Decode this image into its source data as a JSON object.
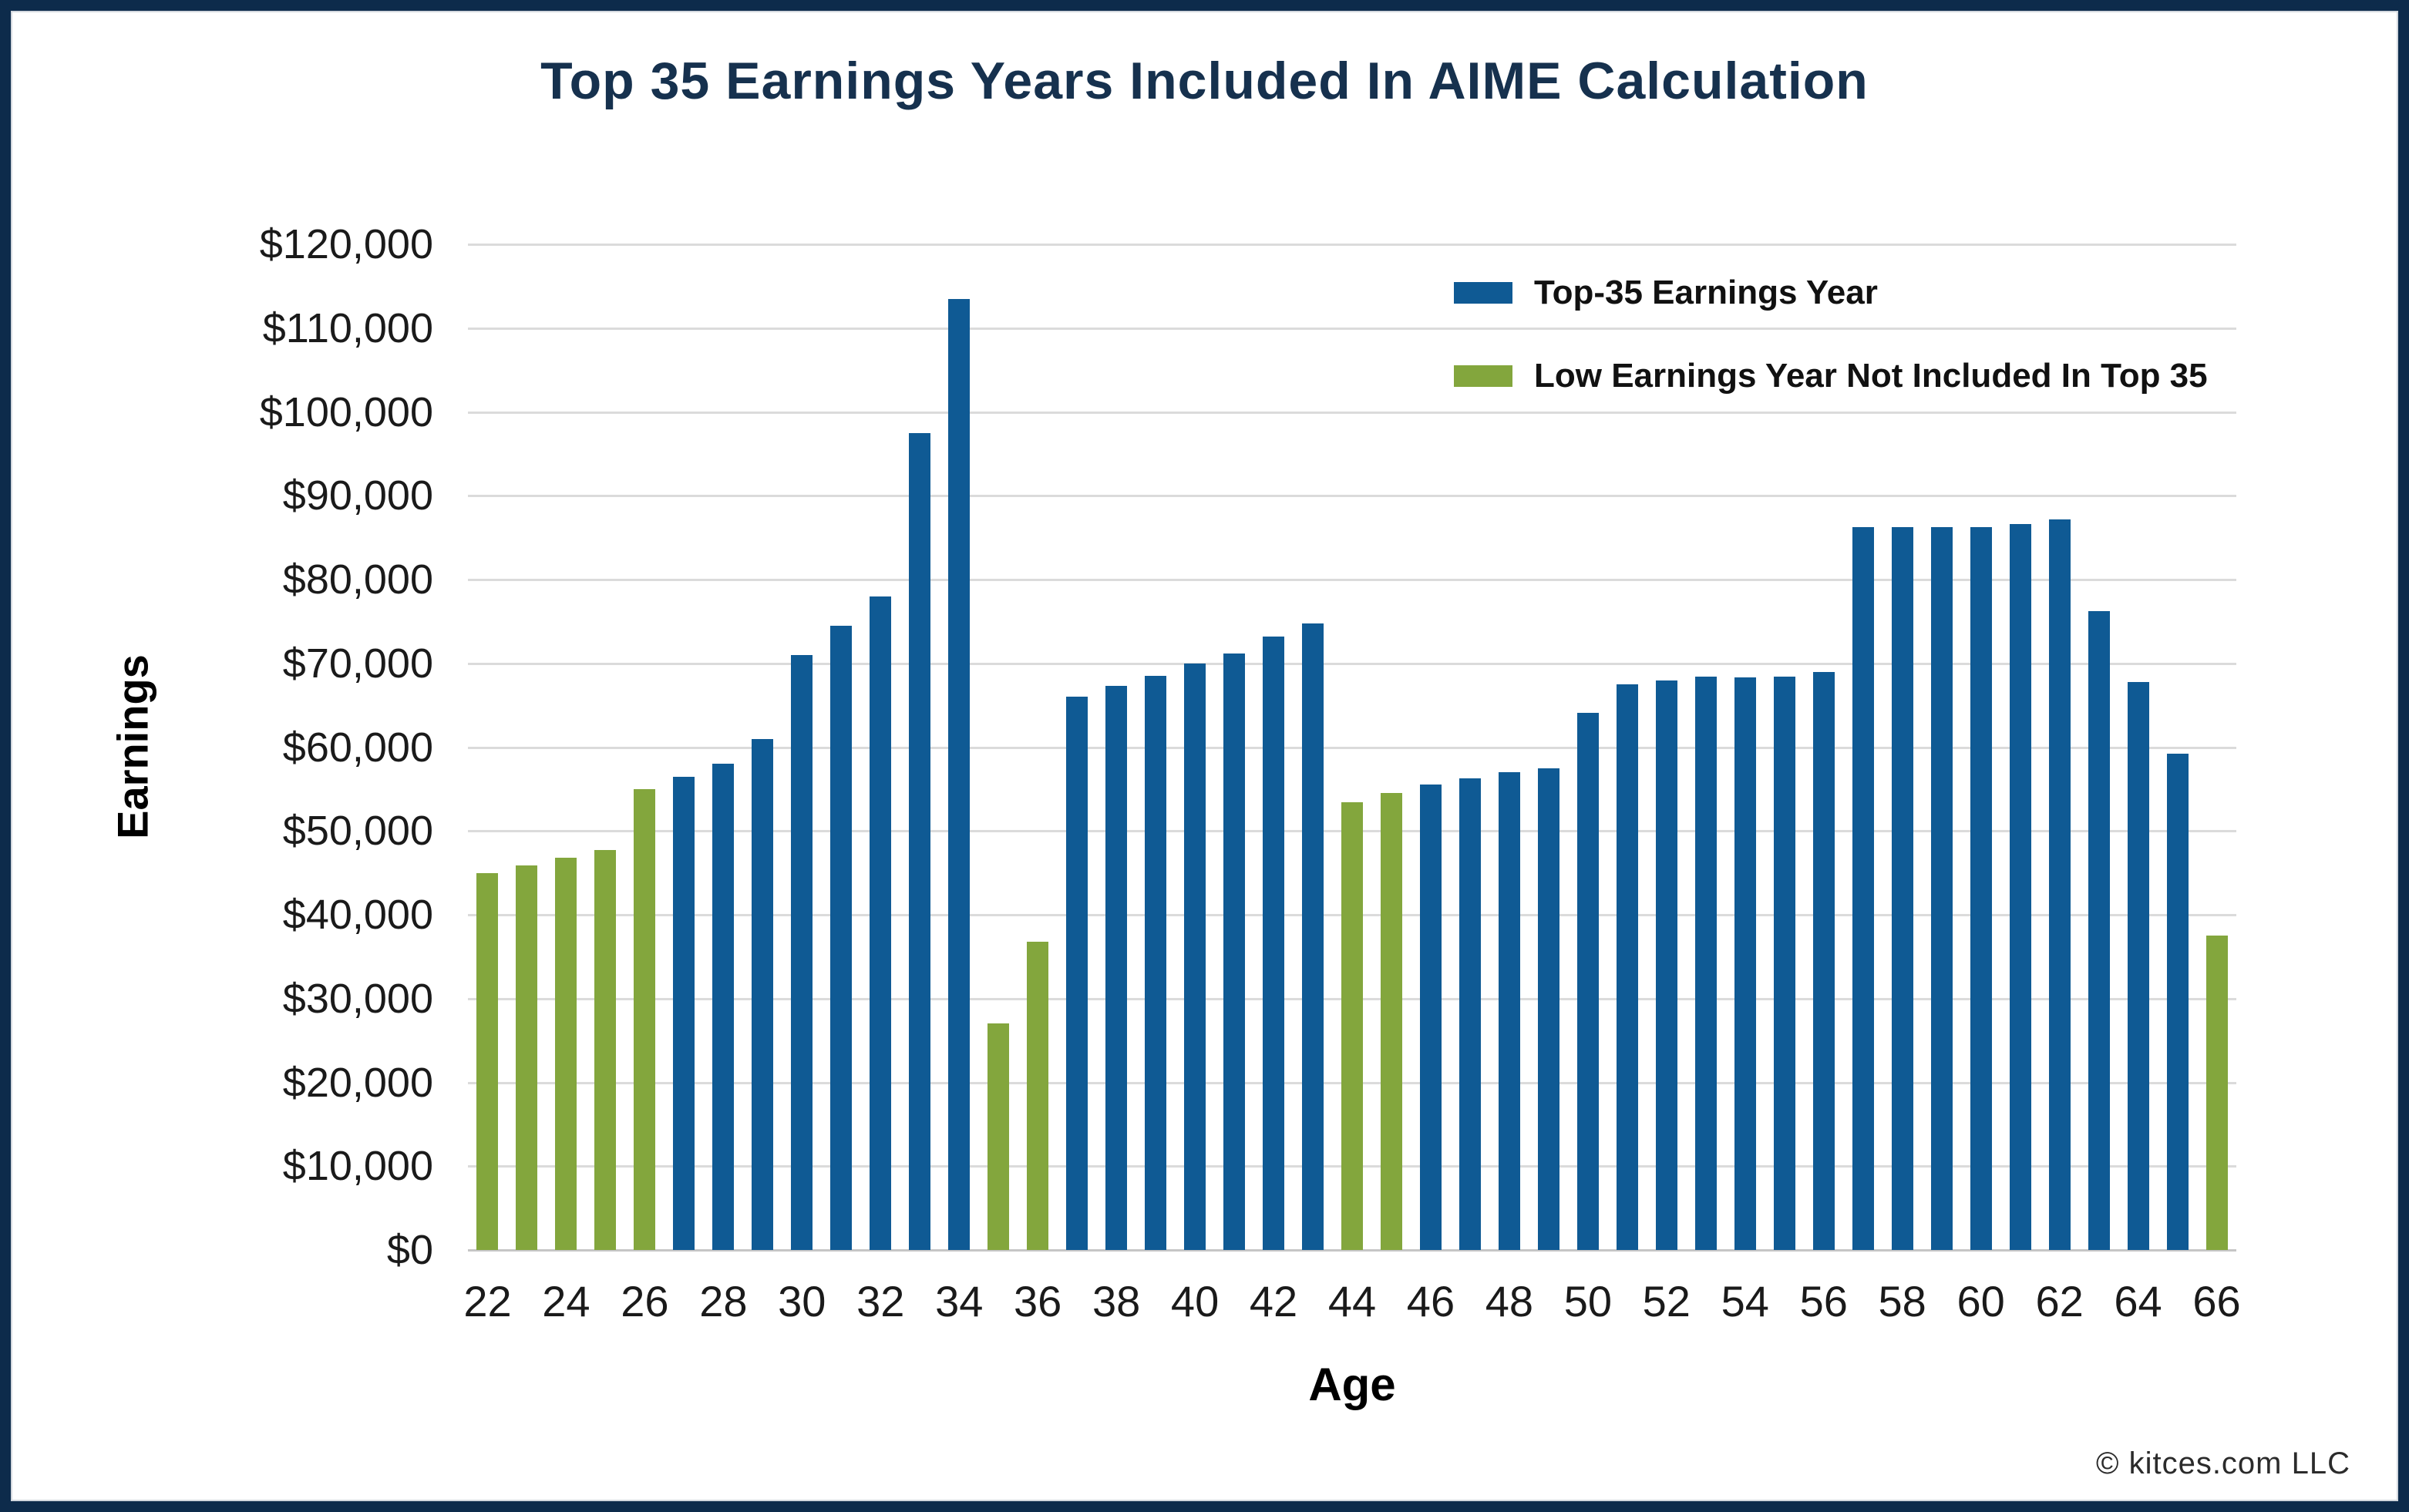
{
  "page": {
    "footer": "© kitces.com LLC"
  },
  "colors": {
    "frame_navy": "#0D2B4B",
    "title_navy": "#16314E",
    "bar_blue": "#0F5A94",
    "bar_green": "#83A63D",
    "gridline": "#DBDBDB",
    "baseline": "#C6C6C6",
    "axis_text": "#1A1A1A"
  },
  "chart_data": {
    "type": "bar",
    "title": "Top 35 Earnings Years Included In AIME Calculation",
    "xlabel": "Age",
    "ylabel": "Earnings",
    "ylim": [
      0,
      120000
    ],
    "y_tick_interval": 10000,
    "grid": "horizontal",
    "legend_position": "top-right-inside",
    "y_tick_labels": [
      "$120,000",
      "$110,000",
      "$100,000",
      "$90,000",
      "$80,000",
      "$70,000",
      "$60,000",
      "$50,000",
      "$40,000",
      "$30,000",
      "$20,000",
      "$10,000",
      "$0"
    ],
    "x_tick_labels": [
      "22",
      "24",
      "26",
      "28",
      "30",
      "32",
      "34",
      "36",
      "38",
      "40",
      "42",
      "44",
      "46",
      "48",
      "50",
      "52",
      "54",
      "56",
      "58",
      "60",
      "62",
      "64",
      "66"
    ],
    "series": [
      {
        "key": "included",
        "label": "Top-35 Earnings Year",
        "color": "#0F5A94"
      },
      {
        "key": "excluded",
        "label": "Low Earnings Year Not Included In Top 35",
        "color": "#83A63D"
      }
    ],
    "bars": [
      {
        "age": 22,
        "value": 45000,
        "series": "excluded"
      },
      {
        "age": 23,
        "value": 45900,
        "series": "excluded"
      },
      {
        "age": 24,
        "value": 46800,
        "series": "excluded"
      },
      {
        "age": 25,
        "value": 47700,
        "series": "excluded"
      },
      {
        "age": 26,
        "value": 55000,
        "series": "excluded"
      },
      {
        "age": 27,
        "value": 56500,
        "series": "included"
      },
      {
        "age": 28,
        "value": 58000,
        "series": "included"
      },
      {
        "age": 29,
        "value": 61000,
        "series": "included"
      },
      {
        "age": 30,
        "value": 71000,
        "series": "included"
      },
      {
        "age": 31,
        "value": 74500,
        "series": "included"
      },
      {
        "age": 32,
        "value": 78000,
        "series": "included"
      },
      {
        "age": 33,
        "value": 97500,
        "series": "included"
      },
      {
        "age": 34,
        "value": 113500,
        "series": "included"
      },
      {
        "age": 35,
        "value": 27000,
        "series": "excluded"
      },
      {
        "age": 36,
        "value": 36800,
        "series": "excluded"
      },
      {
        "age": 37,
        "value": 66000,
        "series": "included"
      },
      {
        "age": 38,
        "value": 67300,
        "series": "included"
      },
      {
        "age": 39,
        "value": 68500,
        "series": "included"
      },
      {
        "age": 40,
        "value": 70000,
        "series": "included"
      },
      {
        "age": 41,
        "value": 71200,
        "series": "included"
      },
      {
        "age": 42,
        "value": 73200,
        "series": "included"
      },
      {
        "age": 43,
        "value": 74800,
        "series": "included"
      },
      {
        "age": 44,
        "value": 53400,
        "series": "excluded"
      },
      {
        "age": 45,
        "value": 54500,
        "series": "excluded"
      },
      {
        "age": 46,
        "value": 55500,
        "series": "included"
      },
      {
        "age": 47,
        "value": 56300,
        "series": "included"
      },
      {
        "age": 48,
        "value": 57000,
        "series": "included"
      },
      {
        "age": 49,
        "value": 57500,
        "series": "included"
      },
      {
        "age": 50,
        "value": 64100,
        "series": "included"
      },
      {
        "age": 51,
        "value": 67500,
        "series": "included"
      },
      {
        "age": 52,
        "value": 68000,
        "series": "included"
      },
      {
        "age": 53,
        "value": 68400,
        "series": "included"
      },
      {
        "age": 54,
        "value": 68300,
        "series": "included"
      },
      {
        "age": 55,
        "value": 68400,
        "series": "included"
      },
      {
        "age": 56,
        "value": 69000,
        "series": "included"
      },
      {
        "age": 57,
        "value": 86300,
        "series": "included"
      },
      {
        "age": 58,
        "value": 86300,
        "series": "included"
      },
      {
        "age": 59,
        "value": 86300,
        "series": "included"
      },
      {
        "age": 60,
        "value": 86300,
        "series": "included"
      },
      {
        "age": 61,
        "value": 86600,
        "series": "included"
      },
      {
        "age": 62,
        "value": 87200,
        "series": "included"
      },
      {
        "age": 63,
        "value": 76200,
        "series": "included"
      },
      {
        "age": 64,
        "value": 67800,
        "series": "included"
      },
      {
        "age": 65,
        "value": 59200,
        "series": "included"
      },
      {
        "age": 66,
        "value": 37500,
        "series": "excluded"
      }
    ]
  }
}
